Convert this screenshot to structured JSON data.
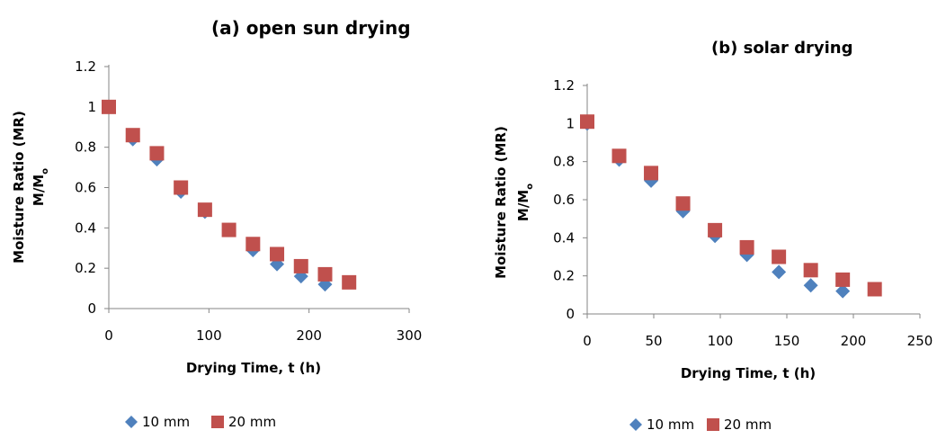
{
  "chart_data": [
    {
      "type": "scatter",
      "title": "(a) open sun drying",
      "xlabel": "Drying Time, t (h)",
      "ylabel": [
        "Moisture Ratio (MR)",
        "M/M",
        "o"
      ],
      "xlim": [
        0,
        300
      ],
      "ylim": [
        0,
        1.2
      ],
      "xticks": [
        0,
        100,
        200,
        300
      ],
      "yticks": [
        0,
        0.2,
        0.4,
        0.6,
        0.8,
        1,
        1.2
      ],
      "xtick_labels": [
        "0",
        "100",
        "200",
        "300"
      ],
      "ytick_labels": [
        "0",
        "0.2",
        "0.4",
        "0.6",
        "0.8",
        "1",
        "1.2"
      ],
      "grid": false,
      "legend_position": "bottom",
      "series": [
        {
          "name": "10 mm",
          "marker": "diamond",
          "color": "#4F81BD",
          "x": [
            0,
            24,
            48,
            72,
            96,
            120,
            144,
            168,
            192,
            216
          ],
          "y": [
            1.0,
            0.84,
            0.74,
            0.58,
            0.48,
            0.39,
            0.29,
            0.22,
            0.16,
            0.12
          ]
        },
        {
          "name": "20 mm",
          "marker": "square",
          "color": "#C0504D",
          "x": [
            0,
            24,
            48,
            72,
            96,
            120,
            144,
            168,
            192,
            216,
            240
          ],
          "y": [
            1.0,
            0.86,
            0.77,
            0.6,
            0.49,
            0.39,
            0.32,
            0.27,
            0.21,
            0.17,
            0.13
          ]
        }
      ]
    },
    {
      "type": "scatter",
      "title": "(b) solar drying",
      "xlabel": "Drying Time, t (h)",
      "ylabel": [
        "Moisture Ratio (MR)",
        "M/M",
        "o"
      ],
      "xlim": [
        0,
        250
      ],
      "ylim": [
        0,
        1.2
      ],
      "xticks": [
        0,
        50,
        100,
        150,
        200,
        250
      ],
      "yticks": [
        0,
        0.2,
        0.4,
        0.6,
        0.8,
        1,
        1.2
      ],
      "xtick_labels": [
        "0",
        "50",
        "100",
        "150",
        "200",
        "250"
      ],
      "ytick_labels": [
        "0",
        "0.2",
        "0.4",
        "0.6",
        "0.8",
        "1",
        "1.2"
      ],
      "grid": false,
      "legend_position": "bottom",
      "series": [
        {
          "name": "10 mm",
          "marker": "diamond",
          "color": "#4F81BD",
          "x": [
            0,
            24,
            48,
            72,
            96,
            120,
            144,
            168,
            192
          ],
          "y": [
            1.0,
            0.81,
            0.7,
            0.54,
            0.41,
            0.31,
            0.22,
            0.15,
            0.12
          ]
        },
        {
          "name": "20 mm",
          "marker": "square",
          "color": "#C0504D",
          "x": [
            0,
            24,
            48,
            72,
            96,
            120,
            144,
            168,
            192,
            216
          ],
          "y": [
            1.01,
            0.83,
            0.74,
            0.58,
            0.44,
            0.35,
            0.3,
            0.23,
            0.18,
            0.13
          ]
        }
      ]
    }
  ]
}
